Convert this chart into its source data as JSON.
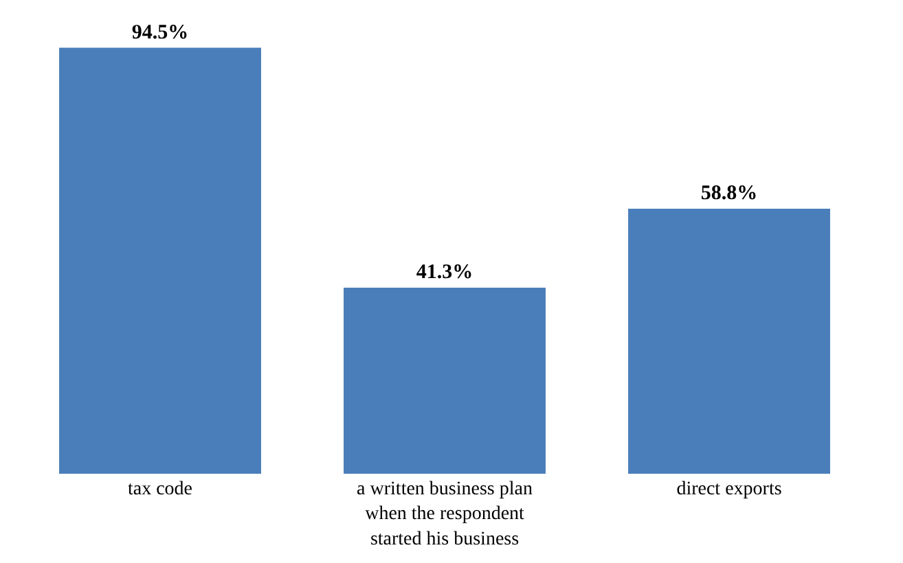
{
  "chart_data": {
    "type": "bar",
    "categories": [
      "tax code",
      "a written business plan when the respondent started his business",
      "direct exports"
    ],
    "values": [
      94.5,
      41.3,
      58.8
    ],
    "value_labels": [
      "94.5%",
      "41.3%",
      "58.8%"
    ],
    "color": "#4a7ebb",
    "legend": false
  }
}
